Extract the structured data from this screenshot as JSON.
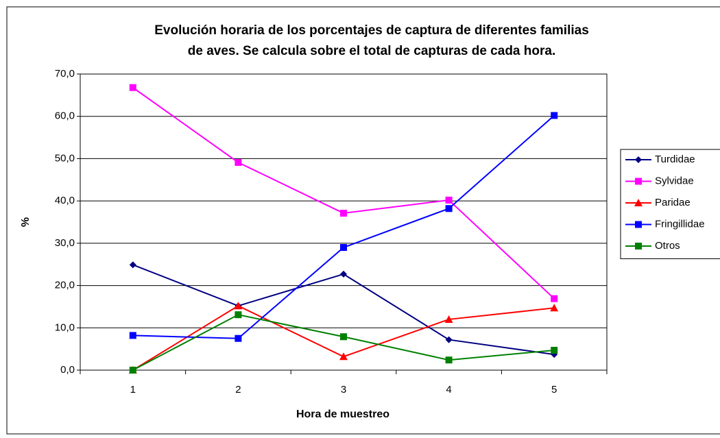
{
  "chart_data": {
    "type": "line",
    "title": [
      "Evolución horaria de los porcentajes de captura de diferentes familias",
      "de aves. Se calcula sobre el total de capturas de cada hora."
    ],
    "x_label": "Hora de muestreo",
    "y_label": "%",
    "categories": [
      "1",
      "2",
      "3",
      "4",
      "5"
    ],
    "series": [
      {
        "name": "Turdidae",
        "color": "#000080",
        "marker": "diamond",
        "values": [
          24.9,
          15.2,
          22.7,
          7.2,
          3.7
        ]
      },
      {
        "name": "Sylvidae",
        "color": "#ff00ff",
        "marker": "square",
        "values": [
          66.8,
          49.1,
          37.1,
          40.2,
          16.9
        ]
      },
      {
        "name": "Paridae",
        "color": "#ff0000",
        "marker": "triangle",
        "values": [
          0,
          15.2,
          3.2,
          12.0,
          14.7
        ]
      },
      {
        "name": "Fringillidae",
        "color": "#0000ff",
        "marker": "square",
        "values": [
          8.2,
          7.5,
          29.0,
          38.2,
          60.2
        ]
      },
      {
        "name": "Otros",
        "color": "#008000",
        "marker": "square",
        "values": [
          0,
          13.1,
          7.9,
          2.4,
          4.7
        ]
      }
    ],
    "ylim": [
      0,
      70
    ],
    "yticks": [
      {
        "value": 0,
        "label": "0,0"
      },
      {
        "value": 10,
        "label": "10,0"
      },
      {
        "value": 20,
        "label": "20,0"
      },
      {
        "value": 30,
        "label": "30,0"
      },
      {
        "value": 40,
        "label": "40,0"
      },
      {
        "value": 50,
        "label": "50,0"
      },
      {
        "value": 60,
        "label": "60,0"
      },
      {
        "value": 70,
        "label": "70,0"
      }
    ],
    "grid": true,
    "legend": "right"
  }
}
